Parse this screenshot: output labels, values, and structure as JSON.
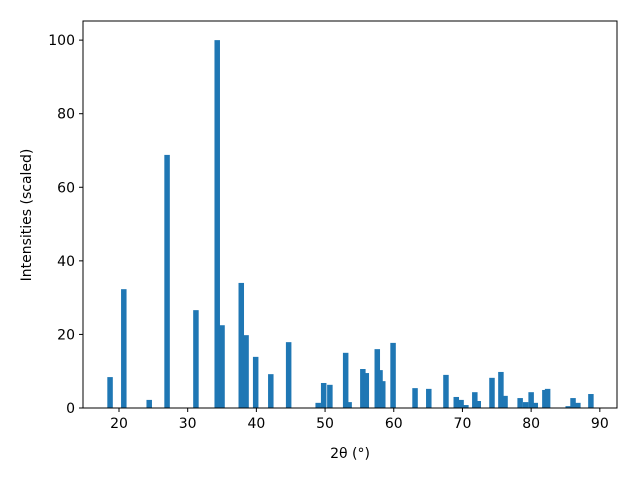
{
  "chart_data": {
    "type": "bar",
    "xlabel": "2θ (°)",
    "ylabel": "Intensities (scaled)",
    "color": "#1f77b4",
    "x": [
      18.7,
      20.7,
      24.4,
      27.0,
      31.2,
      34.3,
      35.0,
      37.8,
      38.5,
      39.9,
      42.1,
      44.7,
      49.0,
      49.8,
      50.7,
      53.0,
      53.5,
      55.5,
      56.0,
      57.6,
      58.0,
      58.4,
      59.9,
      63.1,
      65.1,
      67.6,
      69.1,
      69.8,
      70.5,
      71.8,
      72.3,
      74.3,
      75.6,
      76.2,
      78.4,
      79.2,
      80.0,
      80.6,
      82.0,
      82.4,
      85.4,
      86.1,
      86.8,
      88.7
    ],
    "values": [
      8.4,
      32.3,
      2.2,
      68.8,
      26.6,
      100,
      22.5,
      34,
      19.8,
      13.9,
      9.2,
      17.9,
      1.4,
      6.8,
      6.3,
      15,
      1.6,
      10.6,
      9.5,
      16,
      10.3,
      7.3,
      17.7,
      5.4,
      5.2,
      9,
      3,
      2.2,
      0.8,
      4.3,
      1.9,
      8.2,
      9.8,
      3.3,
      2.7,
      1.6,
      4.3,
      1.4,
      4.9,
      5.2,
      0.5,
      2.7,
      1.4,
      3.8
    ],
    "xlim": [
      14.76,
      92.5
    ],
    "ylim": [
      0,
      105.2
    ],
    "xticks": [
      20,
      30,
      40,
      50,
      60,
      70,
      80,
      90
    ],
    "yticks": [
      0,
      20,
      40,
      60,
      80,
      100
    ]
  }
}
